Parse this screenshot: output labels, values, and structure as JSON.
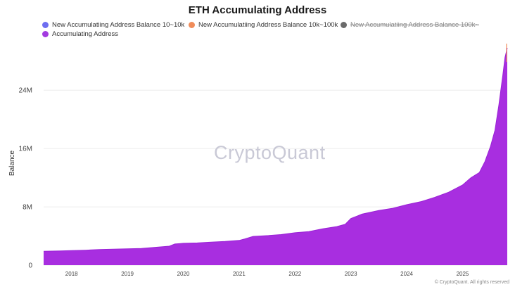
{
  "title": "ETH Accumulating Address",
  "legend": [
    {
      "label": "New Accumulatiing Address Balance 10~10k",
      "color": "#6e6ef0",
      "disabled": false
    },
    {
      "label": "New Accumulatiing Address Balance 10k~100k",
      "color": "#f08c5a",
      "disabled": false
    },
    {
      "label": "New Accumulatiing Address Balance 100k~",
      "color": "#6b6b6b",
      "disabled": true
    },
    {
      "label": "Accumulating Address",
      "color": "#a33be0",
      "disabled": false
    }
  ],
  "watermark": "CryptoQuant",
  "copyright": "© CryptoQuant. All rights reserved",
  "chart_data": {
    "type": "area",
    "ylabel": "Balance",
    "xlabel": "",
    "ylim": [
      0,
      30000000
    ],
    "yticks": [
      {
        "value": 0,
        "label": "0"
      },
      {
        "value": 8000000,
        "label": "8M"
      },
      {
        "value": 16000000,
        "label": "16M"
      },
      {
        "value": 24000000,
        "label": "24M"
      }
    ],
    "xticks": [
      "2018",
      "2019",
      "2020",
      "2021",
      "2022",
      "2023",
      "2024",
      "2025"
    ],
    "xrange": [
      2017.5,
      2025.8
    ],
    "series": [
      {
        "name": "Accumulating Address",
        "color": "#a82ee0",
        "points": [
          [
            2017.5,
            1.9
          ],
          [
            2017.8,
            1.95
          ],
          [
            2018.0,
            2.0
          ],
          [
            2018.25,
            2.05
          ],
          [
            2018.5,
            2.15
          ],
          [
            2018.75,
            2.2
          ],
          [
            2019.0,
            2.25
          ],
          [
            2019.25,
            2.3
          ],
          [
            2019.5,
            2.45
          ],
          [
            2019.75,
            2.6
          ],
          [
            2019.85,
            2.9
          ],
          [
            2020.0,
            3.0
          ],
          [
            2020.25,
            3.05
          ],
          [
            2020.5,
            3.15
          ],
          [
            2020.75,
            3.25
          ],
          [
            2021.0,
            3.4
          ],
          [
            2021.1,
            3.6
          ],
          [
            2021.25,
            3.95
          ],
          [
            2021.5,
            4.05
          ],
          [
            2021.75,
            4.2
          ],
          [
            2022.0,
            4.45
          ],
          [
            2022.25,
            4.6
          ],
          [
            2022.5,
            5.0
          ],
          [
            2022.75,
            5.3
          ],
          [
            2022.9,
            5.6
          ],
          [
            2023.0,
            6.4
          ],
          [
            2023.2,
            7.0
          ],
          [
            2023.5,
            7.5
          ],
          [
            2023.75,
            7.8
          ],
          [
            2024.0,
            8.3
          ],
          [
            2024.25,
            8.7
          ],
          [
            2024.5,
            9.3
          ],
          [
            2024.75,
            10.0
          ],
          [
            2025.0,
            11.0
          ],
          [
            2025.15,
            12.0
          ],
          [
            2025.3,
            12.7
          ],
          [
            2025.4,
            14.2
          ],
          [
            2025.5,
            16.3
          ],
          [
            2025.58,
            18.5
          ],
          [
            2025.65,
            22.0
          ],
          [
            2025.72,
            26.0
          ],
          [
            2025.76,
            28.5
          ],
          [
            2025.8,
            29.8
          ]
        ]
      }
    ],
    "grid": true,
    "legend_position": "top-left"
  }
}
